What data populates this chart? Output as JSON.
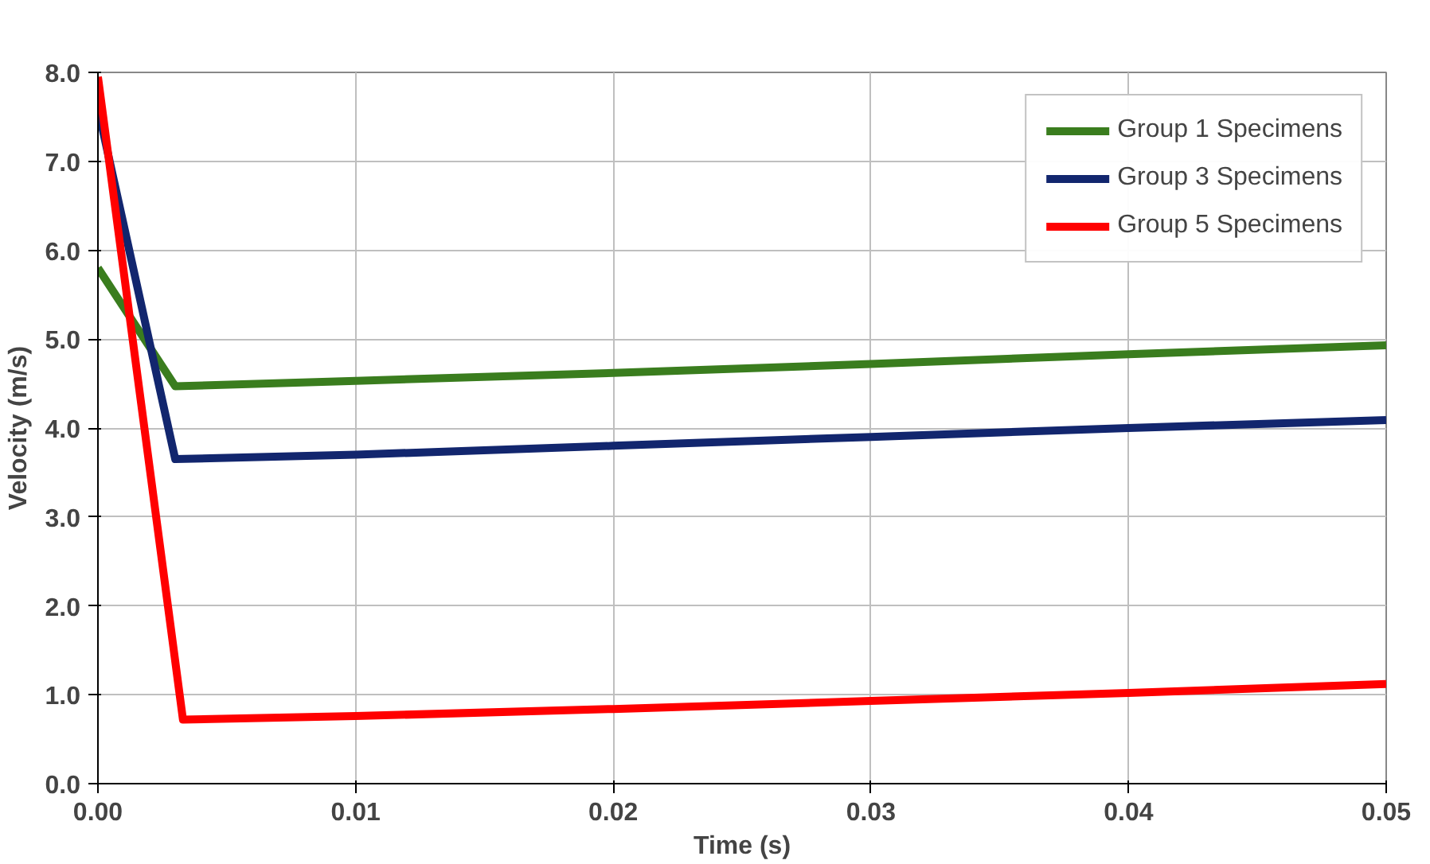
{
  "chart_data": {
    "type": "line",
    "xlabel": "Time (s)",
    "ylabel": "Velocity (m/s)",
    "xlim": [
      0,
      0.05
    ],
    "ylim": [
      0,
      8
    ],
    "xticks": [
      {
        "value": 0,
        "label": "0.00"
      },
      0.01,
      0.02,
      0.03,
      0.04,
      0.05
    ],
    "yticks": [
      {
        "value": 0,
        "label": "0.0"
      },
      {
        "value": 1,
        "label": "1.0"
      },
      {
        "value": 2,
        "label": "2.0"
      },
      {
        "value": 3,
        "label": "3.0"
      },
      {
        "value": 4,
        "label": "4.0"
      },
      {
        "value": 5,
        "label": "5.0"
      },
      {
        "value": 6,
        "label": "6.0"
      },
      {
        "value": 7,
        "label": "7.0"
      },
      {
        "value": 8,
        "label": "8.0"
      }
    ],
    "grid": true,
    "legend": "top right",
    "marker": "none",
    "line_style": "solid",
    "series": [
      {
        "name": "Group 1 Specimens",
        "color": "#3a7d1e",
        "x": [
          0,
          0.003,
          0.01,
          0.02,
          0.03,
          0.04,
          0.05
        ],
        "values": [
          5.8,
          4.47,
          4.53,
          4.62,
          4.72,
          4.83,
          4.93
        ]
      },
      {
        "name": "Group 3 Specimens",
        "color": "#12266e",
        "x": [
          0,
          0.003,
          0.01,
          0.02,
          0.03,
          0.04,
          0.05
        ],
        "values": [
          7.6,
          3.65,
          3.7,
          3.8,
          3.9,
          4.0,
          4.09
        ]
      },
      {
        "name": "Group 5 Specimens",
        "color": "#ff0000",
        "x": [
          0,
          0.0033,
          0.01,
          0.02,
          0.03,
          0.04,
          0.05
        ],
        "values": [
          7.95,
          0.72,
          0.76,
          0.84,
          0.93,
          1.02,
          1.12
        ]
      }
    ]
  }
}
